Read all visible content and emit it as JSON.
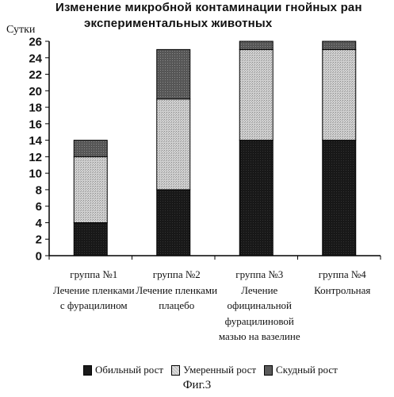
{
  "chart_data": {
    "type": "bar",
    "stacked": true,
    "title_line1": "Изменение микробной контаминации гнойных ран",
    "title_line2": "экспериментальных животных",
    "ylabel": "Сутки",
    "ylim": [
      0,
      26
    ],
    "yticks": [
      0,
      2,
      4,
      6,
      8,
      10,
      12,
      14,
      16,
      18,
      20,
      22,
      24,
      26
    ],
    "categories": [
      [
        "группа №1",
        "Лечение пленками",
        "с фурацилином"
      ],
      [
        "группа №2",
        "Лечение пленками",
        "плацебо"
      ],
      [
        "группа №3",
        "Лечение",
        "официнальной",
        "фурацилиновой",
        "мазью на вазелине"
      ],
      [
        "группа №4",
        "Контрольная"
      ]
    ],
    "series": [
      {
        "name": "Обильный рост",
        "values": [
          4,
          8,
          14,
          14
        ],
        "color": "#1a1a1a"
      },
      {
        "name": "Умеренный рост",
        "values": [
          8,
          11,
          11,
          11
        ],
        "color": "#c8c8c8"
      },
      {
        "name": "Скудный рост",
        "values": [
          2,
          6,
          1,
          1
        ],
        "color": "#5a5a5a"
      }
    ],
    "grid": false,
    "legend_position": "bottom"
  },
  "caption": "Фиг.3"
}
